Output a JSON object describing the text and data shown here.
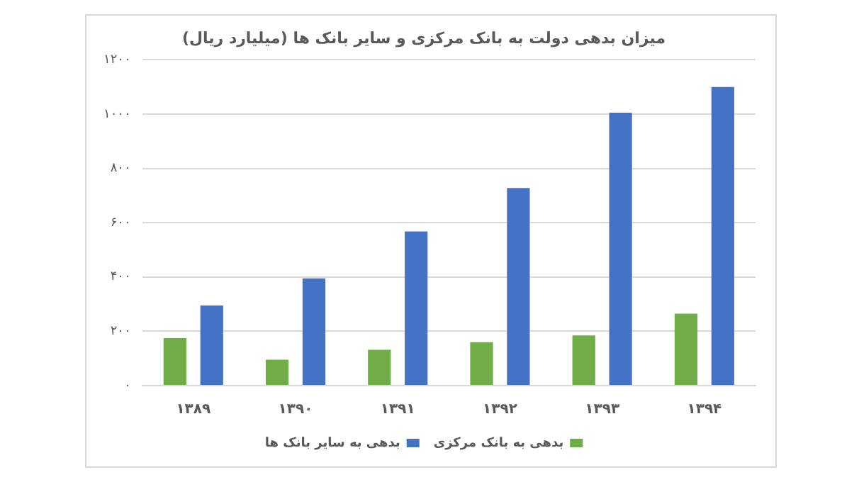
{
  "chart_data": {
    "type": "bar",
    "title": "میزان بدهی دولت به بانک مرکزی و سایر بانک ها (میلیارد ریال)",
    "categories": [
      "۱۳۸۹",
      "۱۳۹۰",
      "۱۳۹۱",
      "۱۳۹۲",
      "۱۳۹۳",
      "۱۳۹۴"
    ],
    "series": [
      {
        "name": "بدهی به بانک مرکزی",
        "color": "#70ad47",
        "values": [
          175,
          95,
          132,
          160,
          185,
          265
        ]
      },
      {
        "name": "بدهی به سایر بانک ها",
        "color": "#4472c4",
        "values": [
          295,
          395,
          568,
          728,
          1005,
          1100
        ]
      }
    ],
    "ylim": [
      0,
      1200
    ],
    "yticks": [
      {
        "value": 0,
        "label": "۰"
      },
      {
        "value": 200,
        "label": "۲۰۰"
      },
      {
        "value": 400,
        "label": "۴۰۰"
      },
      {
        "value": 600,
        "label": "۶۰۰"
      },
      {
        "value": 800,
        "label": "۸۰۰"
      },
      {
        "value": 1000,
        "label": "۱۰۰۰"
      },
      {
        "value": 1200,
        "label": "۱۲۰۰"
      }
    ],
    "grid": "y",
    "legend": "bottom"
  }
}
